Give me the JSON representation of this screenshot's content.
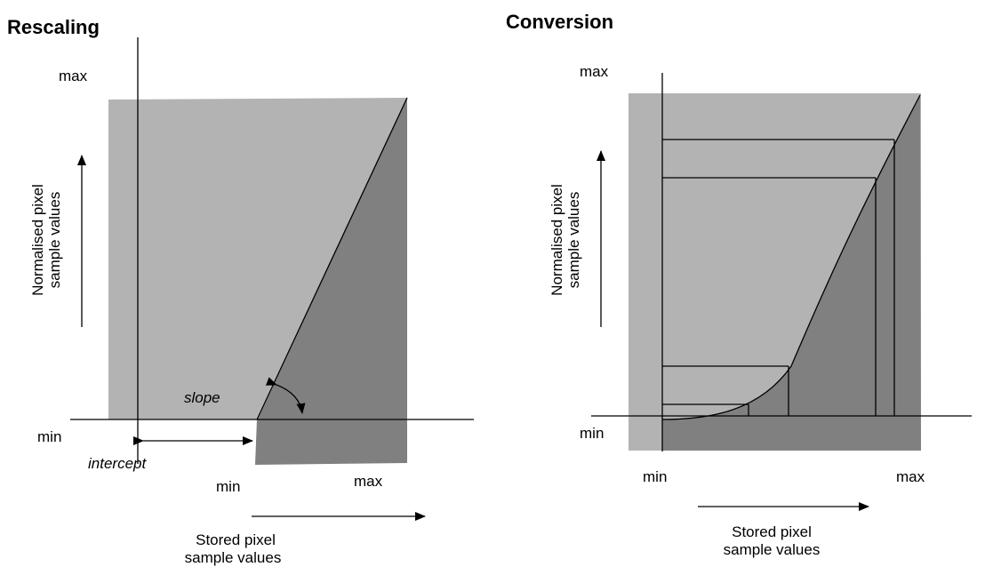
{
  "rescaling": {
    "title": "Rescaling",
    "max_label": "max",
    "min_label_y": "min",
    "min_label_x": "min",
    "max_label_x": "max",
    "y_axis_line1": "Normalised pixel",
    "y_axis_line2": "sample values",
    "x_axis_line1": "Stored pixel",
    "x_axis_line2": "sample values",
    "slope_label": "slope",
    "intercept_label": "intercept"
  },
  "conversion": {
    "title": "Conversion",
    "max_label": "max",
    "min_label_y": "min",
    "min_label_x": "min",
    "max_label_x": "max",
    "y_axis_line1": "Normalised pixel",
    "y_axis_line2": "sample values",
    "x_axis_line1": "Stored pixel",
    "x_axis_line2": "sample values"
  },
  "colors": {
    "light_fill": "#b3b3b3",
    "dark_fill": "#808080",
    "line": "#000000"
  }
}
